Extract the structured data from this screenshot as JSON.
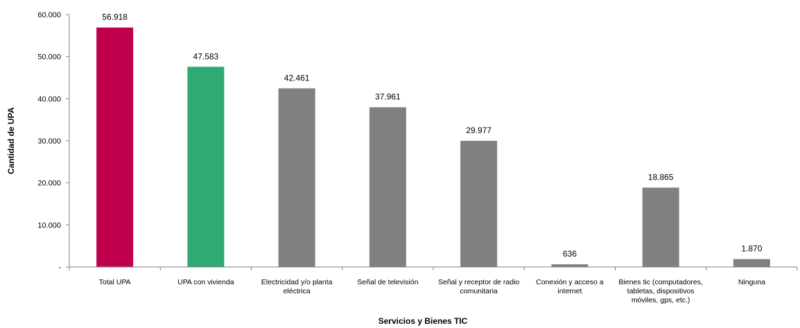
{
  "chart_data": {
    "type": "bar",
    "title": "",
    "xlabel": "Servicios y Bienes TIC",
    "ylabel": "Cantidad de UPA",
    "ylim": [
      0,
      60000
    ],
    "yticks": [
      0,
      10000,
      20000,
      30000,
      40000,
      50000,
      60000
    ],
    "ytick_labels": [
      "-",
      "10.000",
      "20.000",
      "30.000",
      "40.000",
      "50.000",
      "60.000"
    ],
    "grid": false,
    "legend": "none",
    "categories": [
      "Total UPA",
      "UPA con vivienda",
      "Electricidad y/o planta eléctrica",
      "Señal de televisión",
      "Señal y receptor de radio comunitaria",
      "Conexión y acceso a internet",
      "Bienes tic (computadores, tabletas, dispositivos móviles, gps, etc.)",
      "Ninguna"
    ],
    "category_lines": [
      [
        "Total UPA"
      ],
      [
        "UPA con vivienda"
      ],
      [
        "Electricidad y/o planta",
        "eléctrica"
      ],
      [
        "Señal de televisión"
      ],
      [
        "Señal y receptor de radio",
        "comunitaria"
      ],
      [
        "Conexión y acceso a",
        "internet"
      ],
      [
        "Bienes tic (computadores,",
        "tabletas, dispositivos",
        "móviles, gps, etc.)"
      ],
      [
        "Ninguna"
      ]
    ],
    "values": [
      56918,
      47583,
      42461,
      37961,
      29977,
      636,
      18865,
      1870
    ],
    "value_labels": [
      "56.918",
      "47.583",
      "42.461",
      "37.961",
      "29.977",
      "636",
      "18.865",
      "1.870"
    ],
    "colors": [
      "#c0004d",
      "#2eaa74",
      "#808080",
      "#808080",
      "#808080",
      "#808080",
      "#808080",
      "#808080"
    ]
  }
}
